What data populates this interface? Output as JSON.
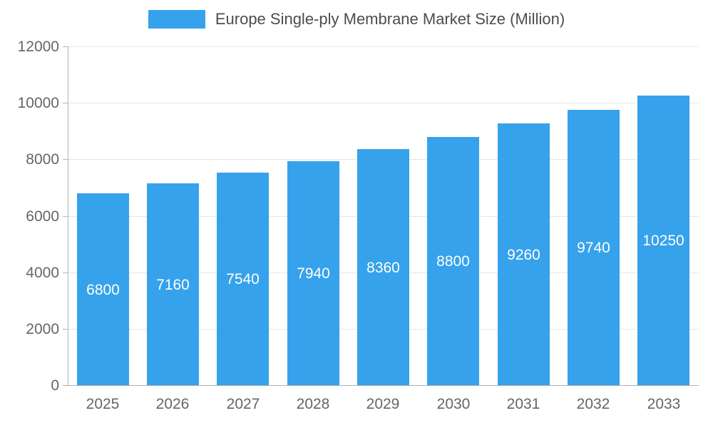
{
  "legend": {
    "label": "Europe Single-ply Membrane Market Size (Million)"
  },
  "chart_data": {
    "type": "bar",
    "title": "Europe Single-ply Membrane Market Size (Million)",
    "categories": [
      "2025",
      "2026",
      "2027",
      "2028",
      "2029",
      "2030",
      "2031",
      "2032",
      "2033"
    ],
    "values": [
      6800,
      7160,
      7540,
      7940,
      8360,
      8800,
      9260,
      9740,
      10250
    ],
    "xlabel": "",
    "ylabel": "",
    "ylim": [
      0,
      12000
    ],
    "ytick_interval": 2000,
    "ytick_labels": [
      "0",
      "2000",
      "4000",
      "6000",
      "8000",
      "10000",
      "12000"
    ],
    "grid": true,
    "legend_position": "top",
    "bar_color": "#36A2EB",
    "value_label_color": "#ffffff",
    "tick_text_color": "#666666",
    "title_color": "#4d4d4d",
    "grid_color": "#e6e6e6",
    "axis_color": "#b3b3b3"
  }
}
